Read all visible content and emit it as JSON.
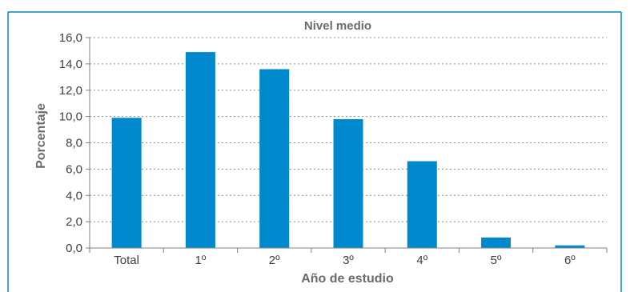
{
  "chart_data": {
    "type": "bar",
    "title": "Nivel medio",
    "xlabel": "Año de estudio",
    "ylabel": "Porcentaje",
    "categories": [
      "Total",
      "1º",
      "2º",
      "3º",
      "4º",
      "5º",
      "6º"
    ],
    "values": [
      9.9,
      14.9,
      13.6,
      9.8,
      6.6,
      0.8,
      0.2
    ],
    "ylim": [
      0,
      16
    ],
    "y_ticks": [
      "0,0",
      "2,0",
      "4,0",
      "6,0",
      "8,0",
      "10,0",
      "12,0",
      "14,0",
      "16,0"
    ],
    "grid": "horizontal dotted",
    "colors": {
      "bar": "#0088cc",
      "frame": "#0088cc",
      "axis": "#808080",
      "grid": "#8c8c8c"
    }
  }
}
